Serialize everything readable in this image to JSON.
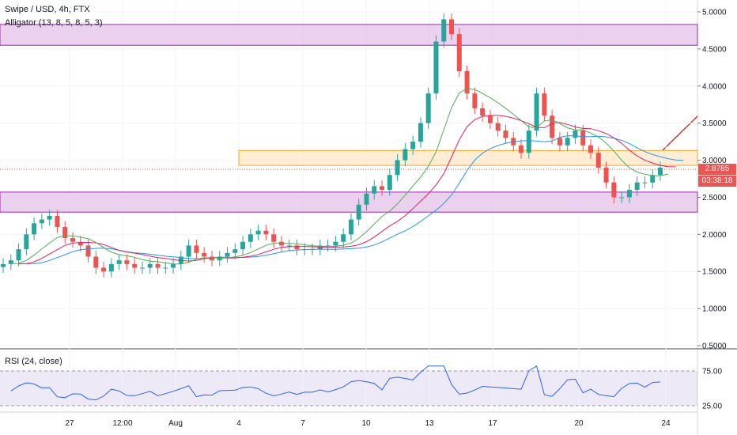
{
  "header": {
    "symbol_line": "Swipe / USD, 4h, FTX",
    "indicator": "Alligator (13, 8, 5, 8, 5, 3)"
  },
  "rsi": {
    "label": "RSI (24, close)",
    "upper": 75,
    "lower": 25
  },
  "price_axis": {
    "ticks": [
      "5.0000",
      "4.5000",
      "4.0000",
      "3.5000",
      "3.0000",
      "2.5000",
      "2.0000",
      "1.5000",
      "1.0000",
      "0.5000"
    ],
    "rsi_ticks": [
      "75.00",
      "25.00"
    ]
  },
  "badges": {
    "last_price": "2.8785",
    "countdown": "03:38:18"
  },
  "time_axis": {
    "labels": [
      "27",
      "12:00",
      "Aug",
      "4",
      "7",
      "10",
      "13",
      "17",
      "20",
      "24"
    ]
  },
  "zones": [
    {
      "name": "resistance-zone",
      "from": 4.55,
      "to": 4.83
    },
    {
      "name": "mid-zone",
      "from": 2.93,
      "to": 3.13
    },
    {
      "name": "support-zone",
      "from": 2.3,
      "to": 2.57
    }
  ],
  "chart_data": {
    "type": "candlestick",
    "title": "Swipe / USD, 4h, FTX",
    "y_range": [
      0.5,
      5.0
    ],
    "x_labels": [
      "27",
      "12:00",
      "Aug",
      "4",
      "7",
      "10",
      "13",
      "17",
      "20",
      "24"
    ],
    "closes": [
      1.6,
      1.65,
      1.8,
      2.0,
      2.15,
      2.2,
      2.25,
      2.1,
      1.95,
      1.9,
      1.85,
      1.7,
      1.55,
      1.5,
      1.6,
      1.65,
      1.6,
      1.55,
      1.55,
      1.6,
      1.55,
      1.55,
      1.6,
      1.7,
      1.85,
      1.75,
      1.7,
      1.65,
      1.7,
      1.75,
      1.8,
      1.9,
      2.0,
      2.05,
      2.0,
      1.9,
      1.85,
      1.85,
      1.8,
      1.8,
      1.8,
      1.85,
      1.85,
      1.9,
      2.0,
      2.2,
      2.4,
      2.55,
      2.65,
      2.6,
      2.8,
      3.0,
      3.15,
      3.25,
      3.5,
      3.9,
      4.6,
      4.9,
      4.7,
      4.2,
      3.9,
      3.7,
      3.6,
      3.5,
      3.4,
      3.3,
      3.2,
      3.1,
      3.4,
      3.9,
      3.6,
      3.3,
      3.2,
      3.3,
      3.4,
      3.2,
      3.1,
      2.9,
      2.7,
      2.5,
      2.5,
      2.6,
      2.7,
      2.7,
      2.8,
      2.9
    ]
  }
}
